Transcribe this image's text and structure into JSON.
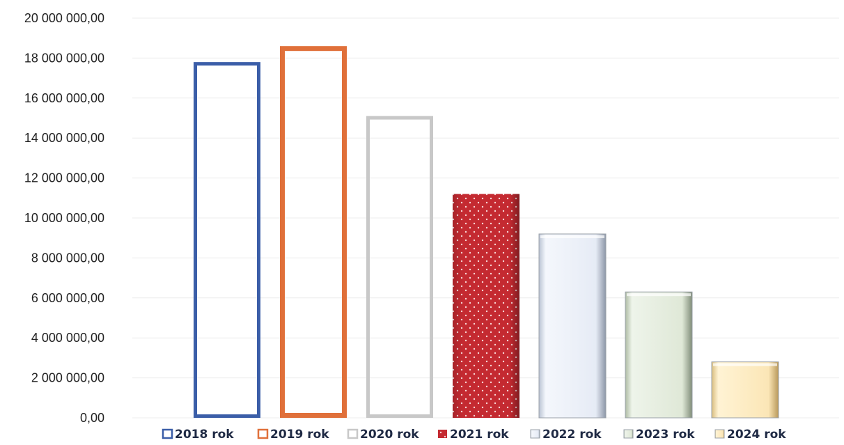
{
  "chart_data": {
    "type": "bar",
    "title": "",
    "xlabel": "",
    "ylabel": "",
    "ylim": [
      0,
      20000000
    ],
    "yticks": [
      "0,00",
      "2 000 000,00",
      "4 000 000,00",
      "6 000 000,00",
      "8 000 000,00",
      "10 000 000,00",
      "12 000 000,00",
      "14 000 000,00",
      "16 000 000,00",
      "18 000 000,00",
      "20 000 000,00"
    ],
    "ytick_values": [
      0,
      2000000,
      4000000,
      6000000,
      8000000,
      10000000,
      12000000,
      14000000,
      16000000,
      18000000,
      20000000
    ],
    "grid": true,
    "legend_position": "bottom",
    "series": [
      {
        "name": "2018 rok",
        "value": 17800000,
        "style": "outline",
        "color": "#3b5ea8"
      },
      {
        "name": "2019 rok",
        "value": 18600000,
        "style": "outline",
        "color": "#e0703a"
      },
      {
        "name": "2020 rok",
        "value": 15100000,
        "style": "outline",
        "color": "#c8c8c8"
      },
      {
        "name": "2021 rok",
        "value": 11200000,
        "style": "dotted",
        "color": "#c0282f"
      },
      {
        "name": "2022 rok",
        "value": 9200000,
        "style": "bevel",
        "color": "#e6ecf7"
      },
      {
        "name": "2023 rok",
        "value": 6300000,
        "style": "bevel",
        "color": "#e3ecdc"
      },
      {
        "name": "2024 rok",
        "value": 2800000,
        "style": "bevel",
        "color": "#fbe6b6"
      }
    ]
  }
}
